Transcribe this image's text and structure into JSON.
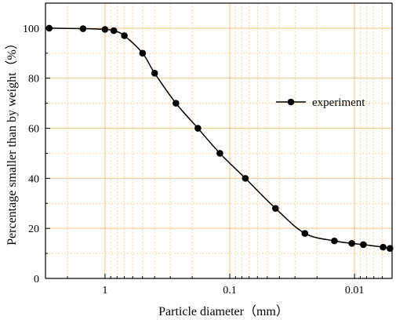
{
  "chart_data": {
    "type": "line",
    "xlabel": "Particle diameter（mm）",
    "ylabel": "Percentage smaller than by weight（%）",
    "x_scale": "log",
    "x_reversed": true,
    "xlim": [
      3,
      0.005
    ],
    "ylim": [
      0,
      110
    ],
    "x_ticks": [
      1,
      0.1,
      0.01
    ],
    "x_tick_labels": [
      "1",
      "0.1",
      "0.01"
    ],
    "y_ticks": [
      0,
      20,
      40,
      60,
      80,
      100
    ],
    "y_tick_labels": [
      "0",
      "20",
      "40",
      "60",
      "80",
      "100"
    ],
    "grid": true,
    "grid_color": "#f5c98a",
    "legend_position": "right",
    "series": [
      {
        "name": "experiment",
        "color": "#000000",
        "marker": "circle",
        "x": [
          2.8,
          1.5,
          1.0,
          0.85,
          0.7,
          0.5,
          0.4,
          0.27,
          0.18,
          0.12,
          0.075,
          0.043,
          0.025,
          0.0145,
          0.0105,
          0.0085,
          0.0059,
          0.0052
        ],
        "y": [
          100,
          99.8,
          99.5,
          99,
          97,
          90,
          82,
          70,
          60,
          50,
          40,
          28,
          18,
          15,
          14,
          13.5,
          12.5,
          12
        ]
      }
    ]
  }
}
